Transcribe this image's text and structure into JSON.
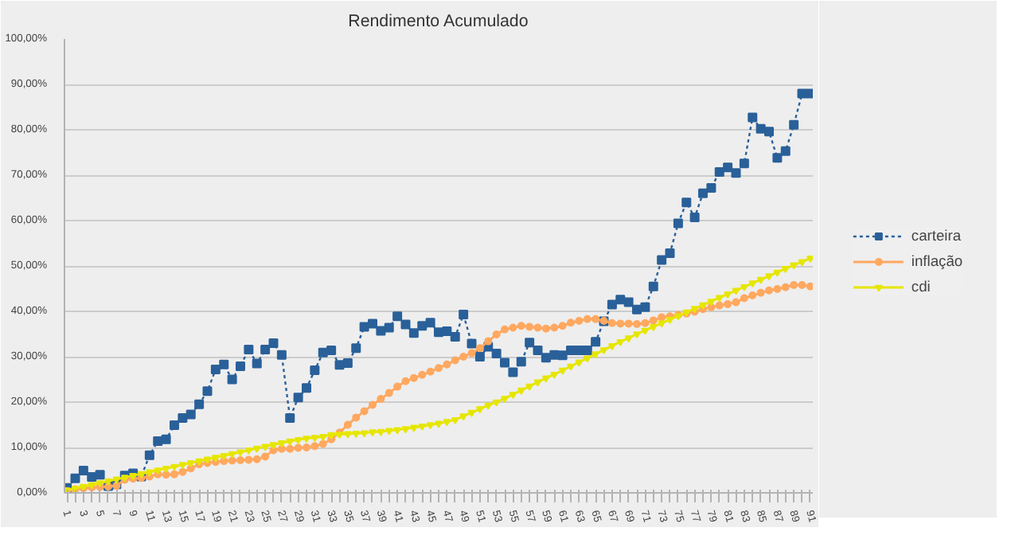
{
  "chart_data": {
    "type": "line",
    "title": "Rendimento Acumulado",
    "categories": [
      "1",
      null,
      "3",
      null,
      "5",
      null,
      "7",
      null,
      "9",
      null,
      "11",
      null,
      "13",
      null,
      "15",
      null,
      "17",
      null,
      "19",
      null,
      "21",
      null,
      "23",
      null,
      "25",
      null,
      "27",
      null,
      "29",
      null,
      "31",
      null,
      "33",
      null,
      "35",
      null,
      "37",
      null,
      "39",
      null,
      "41",
      null,
      "43",
      null,
      "45",
      null,
      "47",
      null,
      "49",
      null,
      "51",
      null,
      "53",
      null,
      "55",
      null,
      "57",
      null,
      "59",
      null,
      "61",
      null,
      "63",
      null,
      "65",
      null,
      "67",
      null,
      "69",
      null,
      "71",
      null,
      "73",
      null,
      "75",
      null,
      "77",
      null,
      "79",
      null,
      "81",
      null,
      "83",
      null,
      "85",
      null,
      "87",
      null,
      "89",
      null,
      "91"
    ],
    "series": [
      {
        "name": "carteira",
        "color": "#2a6099",
        "marker": "square",
        "line_style": "dotted",
        "values": [
          1.1,
          3.2,
          4.9,
          3.5,
          4.0,
          1.5,
          1.9,
          3.8,
          4.3,
          3.6,
          8.3,
          11.4,
          11.8,
          14.9,
          16.5,
          17.3,
          19.5,
          22.4,
          27.2,
          28.3,
          25.0,
          27.9,
          31.6,
          28.5,
          31.6,
          33.0,
          30.4,
          16.5,
          21.0,
          23.1,
          27.0,
          30.9,
          31.4,
          28.2,
          28.6,
          31.9,
          36.6,
          37.3,
          35.7,
          36.4,
          38.9,
          37.1,
          35.2,
          36.8,
          37.5,
          35.4,
          35.6,
          34.4,
          39.3,
          32.9,
          30.0,
          32.2,
          30.7,
          28.7,
          26.6,
          28.9,
          33.1,
          31.4,
          29.8,
          30.4,
          30.3,
          31.4,
          31.4,
          31.4,
          33.3,
          37.8,
          41.5,
          42.6,
          42.0,
          40.4,
          40.9,
          45.5,
          51.3,
          52.8,
          59.4,
          64.0,
          60.7,
          66.0,
          67.2,
          70.7,
          71.7,
          70.5,
          72.6,
          82.7,
          80.2,
          79.6,
          73.8,
          75.3,
          81.1,
          88.0,
          88.0
        ]
      },
      {
        "name": "inflação",
        "color": "#ffa860",
        "marker": "circle",
        "line_style": "solid",
        "values": [
          0.4,
          0.8,
          1.0,
          1.2,
          1.3,
          1.4,
          1.6,
          2.9,
          3.1,
          3.3,
          3.6,
          4.1,
          4.0,
          4.1,
          4.6,
          5.4,
          6.3,
          6.6,
          6.8,
          7.0,
          7.1,
          7.2,
          7.3,
          7.4,
          8.0,
          9.4,
          9.7,
          9.7,
          9.9,
          10.0,
          10.3,
          10.8,
          11.8,
          13.3,
          15.0,
          16.6,
          18.0,
          19.4,
          20.7,
          22.0,
          23.4,
          24.6,
          25.3,
          26.0,
          26.7,
          27.5,
          28.3,
          29.2,
          30.0,
          30.8,
          31.9,
          33.4,
          34.9,
          36.0,
          36.4,
          36.8,
          36.6,
          36.4,
          36.2,
          36.4,
          36.8,
          37.5,
          37.9,
          38.3,
          38.3,
          37.9,
          37.4,
          37.3,
          37.3,
          37.2,
          37.4,
          38.0,
          38.7,
          38.9,
          39.2,
          39.5,
          39.9,
          40.5,
          40.9,
          41.3,
          41.6,
          42.0,
          42.9,
          43.5,
          44.1,
          44.6,
          44.9,
          45.3,
          45.8,
          45.8,
          45.5
        ]
      },
      {
        "name": "cdi",
        "color": "#e6e600",
        "marker": "triangle",
        "line_style": "solid",
        "values": [
          0.6,
          1.0,
          1.4,
          1.8,
          2.2,
          2.6,
          3.0,
          3.4,
          3.8,
          4.2,
          4.6,
          5.0,
          5.4,
          5.8,
          6.2,
          6.6,
          7.0,
          7.4,
          7.8,
          8.2,
          8.6,
          9.0,
          9.4,
          9.8,
          10.2,
          10.6,
          11.0,
          11.4,
          11.7,
          12.0,
          12.2,
          12.4,
          12.8,
          12.9,
          13.0,
          13.1,
          13.2,
          13.4,
          13.5,
          13.7,
          13.9,
          14.1,
          14.4,
          14.7,
          15.0,
          15.3,
          15.7,
          16.1,
          16.9,
          17.7,
          18.5,
          19.3,
          20.0,
          20.8,
          21.7,
          22.6,
          23.5,
          24.4,
          25.3,
          26.1,
          27.0,
          27.9,
          28.8,
          29.7,
          30.6,
          31.5,
          32.4,
          33.3,
          34.1,
          35.0,
          35.8,
          36.6,
          37.4,
          38.2,
          39.0,
          39.8,
          40.6,
          41.4,
          42.2,
          43.0,
          43.8,
          44.6,
          45.4,
          46.2,
          47.0,
          47.8,
          48.6,
          49.4,
          50.2,
          50.9,
          51.7
        ]
      }
    ],
    "ylim": [
      0,
      100
    ],
    "yticks": [
      {
        "value": 0,
        "label": "0,00%"
      },
      {
        "value": 10,
        "label": "10,00%"
      },
      {
        "value": 20,
        "label": "20,00%"
      },
      {
        "value": 30,
        "label": "30,00%"
      },
      {
        "value": 40,
        "label": "40,00%"
      },
      {
        "value": 50,
        "label": "50,00%"
      },
      {
        "value": 60,
        "label": "60,00%"
      },
      {
        "value": 70,
        "label": "70,00%"
      },
      {
        "value": 80,
        "label": "80,00%"
      },
      {
        "value": 90,
        "label": "90,00%"
      },
      {
        "value": 100,
        "label": "100,00%"
      }
    ],
    "grid": "y",
    "legend": "right"
  }
}
